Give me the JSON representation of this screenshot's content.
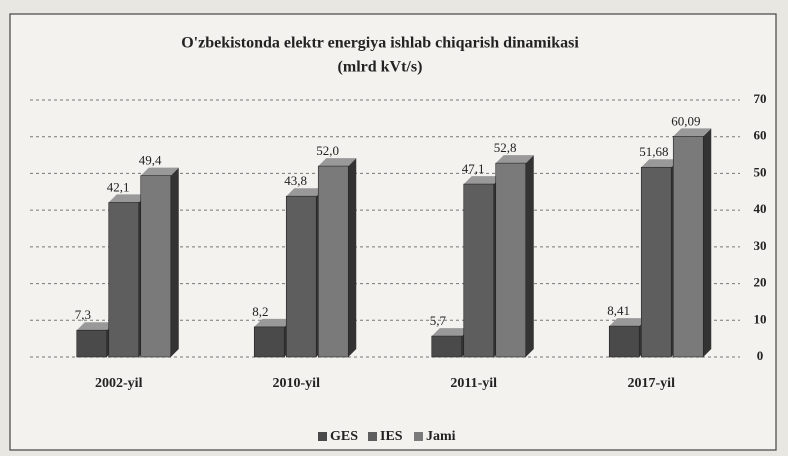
{
  "chart_data": {
    "type": "bar",
    "title": "O'zbekistonda elektr energiya ishlab chiqarish dinamikasi",
    "subtitle": "(mlrd kVt/s)",
    "categories": [
      "2002-yil",
      "2010-yil",
      "2011-yil",
      "2017-yil"
    ],
    "series": [
      {
        "name": "GES",
        "color": "#4a4a4a",
        "values": [
          7.3,
          8.2,
          5.7,
          8.41
        ],
        "value_labels": [
          "7,3",
          "8,2",
          "5,7",
          "8,41"
        ]
      },
      {
        "name": "IES",
        "color": "#5e5e5e",
        "values": [
          42.1,
          43.8,
          47.1,
          51.68
        ],
        "value_labels": [
          "42,1",
          "43,8",
          "47,1",
          "51,68"
        ]
      },
      {
        "name": "Jami",
        "color": "#7a7a7a",
        "values": [
          49.4,
          52.0,
          52.8,
          60.09
        ],
        "value_labels": [
          "49,4",
          "52,0",
          "52,8",
          "60,09"
        ]
      }
    ],
    "ylim": [
      0,
      70
    ],
    "yticks": [
      0,
      10,
      20,
      30,
      40,
      50,
      60,
      70
    ],
    "grid": true,
    "legend": "bottom"
  }
}
